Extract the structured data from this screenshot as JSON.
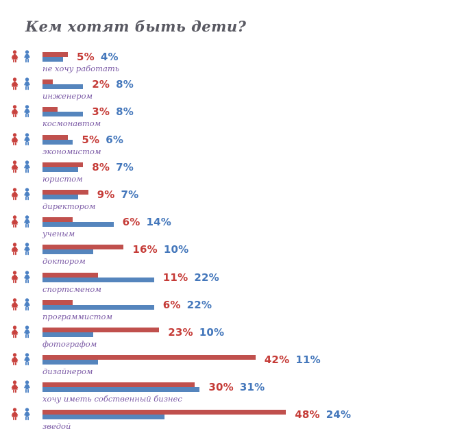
{
  "title": "Кем хотят быть дети?",
  "colors": {
    "bar-red": "#c0504d",
    "bar-blue": "#5585bd",
    "pct-red": "#c53b37",
    "pct-blue": "#4477bb",
    "label-purple": "#7c5ba6",
    "title-gray": "#595962",
    "icon-red": "#c8423e",
    "icon-blue": "#4d82c4"
  },
  "icons": {
    "left": "girl-icon",
    "right": "boy-icon"
  },
  "chart_data": {
    "type": "bar",
    "orientation": "horizontal",
    "title": "Кем хотят быть дети?",
    "unit": "%",
    "value_range": [
      0,
      50
    ],
    "grid": false,
    "legend": "none (red girl icon and blue boy icon shown per row)",
    "categories": [
      "не хочу работать",
      "инженером",
      "космонавтом",
      "экономистом",
      "юристом",
      "директором",
      "ученым",
      "доктором",
      "спортсменом",
      "программистом",
      "фотографом",
      "дизайнером",
      "хочу иметь собственный бизнес",
      "зведой"
    ],
    "series": [
      {
        "name": "red-girls",
        "icon": "girl-icon",
        "color": "#c0504d",
        "values": [
          5,
          2,
          3,
          5,
          8,
          9,
          6,
          16,
          11,
          6,
          23,
          42,
          30,
          48
        ]
      },
      {
        "name": "blue-boys",
        "icon": "boy-icon",
        "color": "#5585bd",
        "values": [
          4,
          8,
          8,
          6,
          7,
          7,
          14,
          10,
          22,
          22,
          10,
          11,
          31,
          24
        ]
      }
    ]
  }
}
